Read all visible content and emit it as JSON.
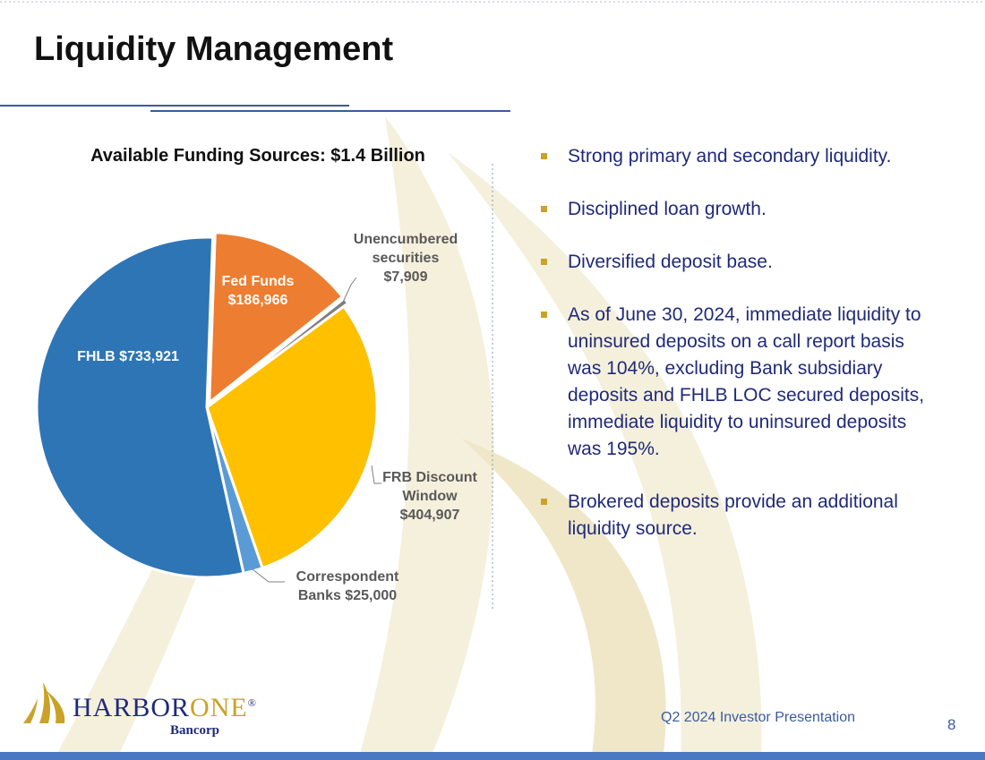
{
  "page": {
    "title": "Liquidity Management",
    "footer": "Q2 2024 Investor Presentation",
    "page_number": "8"
  },
  "logo": {
    "name_part1": "HARBOR",
    "name_part2": "ONE",
    "registered": "®",
    "subtitle": "Bancorp"
  },
  "bullets": [
    "Strong primary and secondary liquidity.",
    "Disciplined loan growth.",
    "Diversified deposit base.",
    "As of June 30, 2024, immediate liquidity to uninsured deposits on a call report basis was 104%, excluding Bank subsidiary deposits and FHLB LOC secured deposits, immediate liquidity to uninsured deposits was 195%.",
    "Brokered deposits provide an additional liquidity source."
  ],
  "colors": {
    "accent": "#c9a227",
    "text_blue": "#1f2a7a",
    "bar_blue": "#4a78c2"
  },
  "chart_data": {
    "type": "pie",
    "title": "Available Funding Sources:  $1.4 Billion",
    "start_angle_deg": 2,
    "slices": [
      {
        "name": "Fed Funds",
        "value": 186966,
        "color": "#ED7D31",
        "label_lines": [
          "Fed Funds",
          "$186,966"
        ]
      },
      {
        "name": "Unencumbered securities",
        "value": 7909,
        "color": "#7F7F7F",
        "label_lines": [
          "Unencumbered",
          "securities",
          "$7,909"
        ]
      },
      {
        "name": "FRB Discount Window",
        "value": 404907,
        "color": "#FFC000",
        "label_lines": [
          "FRB Discount",
          "Window",
          "$404,907"
        ]
      },
      {
        "name": "Correspondent Banks",
        "value": 25000,
        "color": "#5B9BD5",
        "label_lines": [
          "Correspondent",
          "Banks $25,000"
        ]
      },
      {
        "name": "FHLB",
        "value": 733921,
        "color": "#2E75B6",
        "label_lines": [
          "FHLB $733,921"
        ]
      }
    ]
  }
}
